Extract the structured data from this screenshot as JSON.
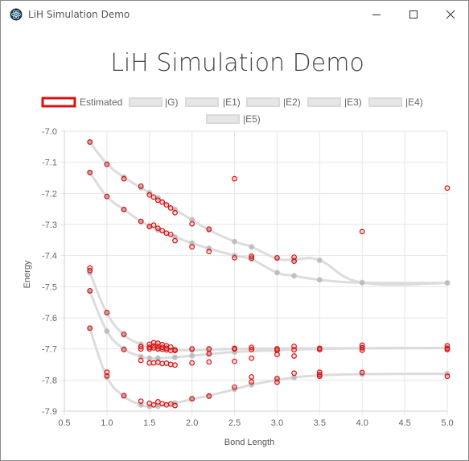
{
  "window": {
    "title": "LiH Simulation Demo"
  },
  "icons": {
    "app": "electron-app-icon",
    "minimize": "minimize-icon",
    "maximize": "maximize-icon",
    "close": "close-icon"
  },
  "colors": {
    "estimated": "#dd1111",
    "exact_line": "#dcdcdc",
    "exact_point": "#bdbdbd",
    "grid": "#e6e6e6",
    "title": "#444444"
  },
  "chart_data": {
    "type": "scatter",
    "title": "LiH Simulation Demo",
    "xlabel": "Bond Length",
    "ylabel": "Energy",
    "xlim": [
      0.5,
      5.0
    ],
    "ylim": [
      -7.9,
      -7.0
    ],
    "xticks": [
      "0.5",
      "1.0",
      "1.5",
      "2.0",
      "2.5",
      "3.0",
      "3.5",
      "4.0",
      "4.5",
      "5.0"
    ],
    "yticks": [
      "-7.0",
      "-7.1",
      "-7.2",
      "-7.3",
      "-7.4",
      "-7.5",
      "-7.6",
      "-7.7",
      "-7.8",
      "-7.9"
    ],
    "grid": true,
    "legend_position": "top",
    "legend": [
      "Estimated",
      "|G)",
      "|E1)",
      "|E2)",
      "|E3)",
      "|E4)",
      "|E5)"
    ],
    "exact_series": [
      {
        "name": "|G)",
        "x": [
          0.8,
          1.0,
          1.2,
          1.4,
          1.5,
          1.6,
          1.8,
          2.0,
          2.2,
          2.5,
          3.0,
          3.5,
          4.0,
          5.0
        ],
        "y": [
          -7.455,
          -7.585,
          -7.655,
          -7.685,
          -7.693,
          -7.699,
          -7.704,
          -7.704,
          -7.702,
          -7.7,
          -7.699,
          -7.698,
          -7.698,
          -7.697
        ]
      },
      {
        "name": "|E1)",
        "x": [
          0.8,
          1.0,
          1.2,
          1.4,
          1.5,
          1.6,
          1.8,
          2.0,
          2.2,
          2.5,
          3.0,
          3.5,
          4.0,
          5.0
        ],
        "y": [
          -7.515,
          -7.643,
          -7.7,
          -7.725,
          -7.73,
          -7.73,
          -7.727,
          -7.722,
          -7.717,
          -7.71,
          -7.704,
          -7.7,
          -7.698,
          -7.697
        ]
      },
      {
        "name": "|E2)",
        "x": [
          0.8,
          1.0,
          1.2,
          1.4,
          1.5,
          1.6,
          1.8,
          2.0,
          2.2,
          2.5,
          2.7,
          3.0,
          3.2,
          3.5,
          4.0,
          5.0
        ],
        "y": [
          -7.635,
          -7.79,
          -7.852,
          -7.88,
          -7.885,
          -7.884,
          -7.874,
          -7.862,
          -7.85,
          -7.83,
          -7.815,
          -7.8,
          -7.792,
          -7.785,
          -7.781,
          -7.78
        ]
      },
      {
        "name": "|E3)",
        "x": [
          0.8,
          1.0,
          1.2,
          1.4,
          1.5,
          1.6,
          1.8,
          2.0,
          2.2,
          2.5,
          2.7,
          3.0,
          3.2,
          3.5,
          4.0,
          5.0
        ],
        "y": [
          -7.133,
          -7.21,
          -7.252,
          -7.29,
          -7.305,
          -7.318,
          -7.34,
          -7.36,
          -7.377,
          -7.4,
          -7.412,
          -7.455,
          -7.465,
          -7.478,
          -7.487,
          -7.488
        ]
      },
      {
        "name": "|E4)",
        "x": [
          0.8,
          1.0,
          1.2,
          1.4,
          1.5,
          1.6,
          1.8,
          2.0,
          2.2,
          2.5,
          2.7,
          3.0,
          3.2,
          3.5,
          4.0,
          5.0
        ],
        "y": [
          -7.035,
          -7.105,
          -7.148,
          -7.182,
          -7.198,
          -7.215,
          -7.252,
          -7.285,
          -7.318,
          -7.355,
          -7.372,
          -7.41,
          -7.413,
          -7.415,
          -7.487,
          -7.488
        ]
      }
    ],
    "estimated": {
      "name": "Estimated",
      "points": [
        [
          0.8,
          -7.035
        ],
        [
          0.8,
          -7.133
        ],
        [
          0.8,
          -7.44
        ],
        [
          0.8,
          -7.448
        ],
        [
          0.8,
          -7.513
        ],
        [
          0.8,
          -7.633
        ],
        [
          1.0,
          -7.107
        ],
        [
          1.0,
          -7.21
        ],
        [
          1.0,
          -7.583
        ],
        [
          1.0,
          -7.775
        ],
        [
          1.0,
          -7.787
        ],
        [
          1.2,
          -7.153
        ],
        [
          1.2,
          -7.252
        ],
        [
          1.2,
          -7.653
        ],
        [
          1.2,
          -7.702
        ],
        [
          1.2,
          -7.85
        ],
        [
          1.4,
          -7.177
        ],
        [
          1.4,
          -7.29
        ],
        [
          1.4,
          -7.693
        ],
        [
          1.4,
          -7.7
        ],
        [
          1.4,
          -7.737
        ],
        [
          1.4,
          -7.868
        ],
        [
          1.5,
          -7.205
        ],
        [
          1.5,
          -7.307
        ],
        [
          1.5,
          -7.685
        ],
        [
          1.5,
          -7.695
        ],
        [
          1.5,
          -7.7
        ],
        [
          1.5,
          -7.745
        ],
        [
          1.5,
          -7.875
        ],
        [
          1.55,
          -7.212
        ],
        [
          1.55,
          -7.302
        ],
        [
          1.55,
          -7.68
        ],
        [
          1.55,
          -7.69
        ],
        [
          1.55,
          -7.697
        ],
        [
          1.55,
          -7.745
        ],
        [
          1.55,
          -7.88
        ],
        [
          1.6,
          -7.222
        ],
        [
          1.6,
          -7.312
        ],
        [
          1.6,
          -7.682
        ],
        [
          1.6,
          -7.692
        ],
        [
          1.6,
          -7.7
        ],
        [
          1.6,
          -7.743
        ],
        [
          1.6,
          -7.87
        ],
        [
          1.65,
          -7.228
        ],
        [
          1.65,
          -7.32
        ],
        [
          1.65,
          -7.686
        ],
        [
          1.65,
          -7.695
        ],
        [
          1.65,
          -7.701
        ],
        [
          1.65,
          -7.747
        ],
        [
          1.65,
          -7.876
        ],
        [
          1.7,
          -7.237
        ],
        [
          1.7,
          -7.328
        ],
        [
          1.7,
          -7.69
        ],
        [
          1.7,
          -7.698
        ],
        [
          1.7,
          -7.703
        ],
        [
          1.7,
          -7.746
        ],
        [
          1.7,
          -7.88
        ],
        [
          1.75,
          -7.247
        ],
        [
          1.75,
          -7.332
        ],
        [
          1.75,
          -7.694
        ],
        [
          1.75,
          -7.705
        ],
        [
          1.75,
          -7.75
        ],
        [
          1.75,
          -7.877
        ],
        [
          1.8,
          -7.262
        ],
        [
          1.8,
          -7.352
        ],
        [
          1.8,
          -7.703
        ],
        [
          1.8,
          -7.705
        ],
        [
          1.8,
          -7.752
        ],
        [
          1.8,
          -7.882
        ],
        [
          2.0,
          -7.298
        ],
        [
          2.0,
          -7.372
        ],
        [
          2.0,
          -7.7
        ],
        [
          2.0,
          -7.745
        ],
        [
          2.0,
          -7.86
        ],
        [
          2.2,
          -7.315
        ],
        [
          2.2,
          -7.387
        ],
        [
          2.2,
          -7.7
        ],
        [
          2.2,
          -7.715
        ],
        [
          2.2,
          -7.742
        ],
        [
          2.2,
          -7.852
        ],
        [
          2.5,
          -7.153
        ],
        [
          2.5,
          -7.407
        ],
        [
          2.5,
          -7.698
        ],
        [
          2.5,
          -7.7
        ],
        [
          2.5,
          -7.74
        ],
        [
          2.5,
          -7.823
        ],
        [
          2.7,
          -7.402
        ],
        [
          2.7,
          -7.408
        ],
        [
          2.7,
          -7.695
        ],
        [
          2.7,
          -7.702
        ],
        [
          2.7,
          -7.73
        ],
        [
          2.7,
          -7.79
        ],
        [
          2.7,
          -7.806
        ],
        [
          3.0,
          -7.407
        ],
        [
          3.0,
          -7.7
        ],
        [
          3.0,
          -7.705
        ],
        [
          3.0,
          -7.718
        ],
        [
          3.0,
          -7.795
        ],
        [
          3.0,
          -7.807
        ],
        [
          3.2,
          -7.405
        ],
        [
          3.2,
          -7.418
        ],
        [
          3.2,
          -7.692
        ],
        [
          3.2,
          -7.703
        ],
        [
          3.2,
          -7.723
        ],
        [
          3.2,
          -7.778
        ],
        [
          3.5,
          -7.698
        ],
        [
          3.5,
          -7.702
        ],
        [
          3.5,
          -7.775
        ],
        [
          3.5,
          -7.782
        ],
        [
          3.5,
          -7.788
        ],
        [
          4.0,
          -7.323
        ],
        [
          4.0,
          -7.688
        ],
        [
          4.0,
          -7.696
        ],
        [
          4.0,
          -7.704
        ],
        [
          4.0,
          -7.776
        ],
        [
          5.0,
          -7.183
        ],
        [
          5.0,
          -7.69
        ],
        [
          5.0,
          -7.698
        ],
        [
          5.0,
          -7.702
        ],
        [
          5.0,
          -7.788
        ]
      ]
    }
  }
}
